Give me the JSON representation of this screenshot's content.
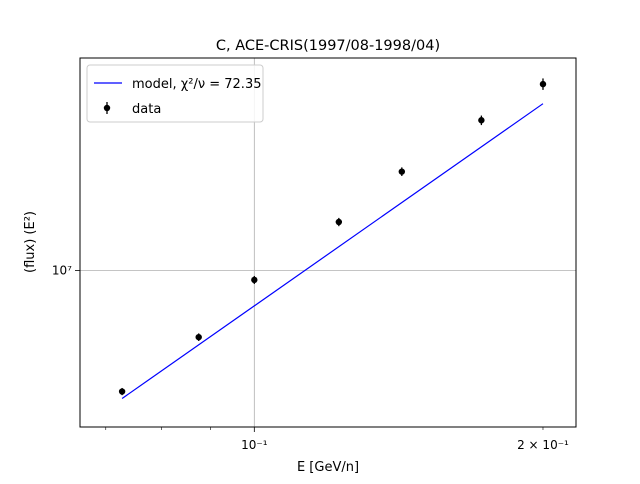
{
  "chart_data": {
    "type": "scatter",
    "title": "C, ACE-CRIS(1997/08-1998/04)",
    "xlabel": "E [GeV/n]",
    "ylabel": "(flux)  (E²)",
    "x_scale": "log",
    "y_scale": "log",
    "xlim": [
      0.0658,
      0.2165
    ],
    "ylim": [
      4400000,
      30500000
    ],
    "grid": true,
    "x_major_ticks": [
      {
        "value": 0.1,
        "label": "10⁻¹"
      }
    ],
    "x_extra_ticks": [
      {
        "value": 0.2,
        "label": "2 × 10⁻¹"
      }
    ],
    "x_minor_ticks": [
      0.07,
      0.08,
      0.09
    ],
    "y_major_ticks": [
      {
        "value": 10000000,
        "label": "10⁷"
      }
    ],
    "legend": {
      "placement": "top-left",
      "entries": [
        {
          "label": "model, χ²/ν = 72.35",
          "marker": "line",
          "color": "#0000ff"
        },
        {
          "label": "data",
          "marker": "errorbar-point",
          "color": "#000000"
        }
      ]
    },
    "series": [
      {
        "name": "data",
        "style": "errorbar-point",
        "color": "#000000",
        "x": [
          0.0728,
          0.0875,
          0.1,
          0.1225,
          0.1425,
          0.1725,
          0.2
        ],
        "y": [
          5300000,
          7050000,
          9520000,
          12900000,
          16800000,
          22000000,
          26600000
        ],
        "yerr": [
          100000,
          140000,
          200000,
          280000,
          380000,
          550000,
          800000
        ]
      },
      {
        "name": "model",
        "style": "line",
        "color": "#0000ff",
        "x": [
          0.0728,
          0.2
        ],
        "y": [
          5110000,
          24000000
        ]
      }
    ]
  }
}
